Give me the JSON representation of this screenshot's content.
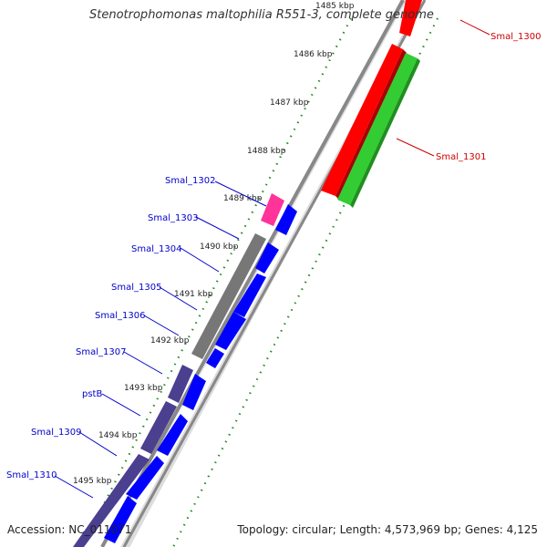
{
  "title": "Stenotrophomonas maltophilia R551-3, complete genome",
  "footer": {
    "accession": "Accession: NC_011071",
    "topology": "Topology: circular; Length: 4,573,969 bp; Genes: 4,125"
  },
  "colors": {
    "forward_gene": "#0000ff",
    "reverse_gene_red": "#ff0000",
    "reverse_gene_green": "#33cc33",
    "pseudo_grey": "#777777",
    "slate_gene": "#4b3f8f",
    "magenta_gene": "#ff3399",
    "label_blue": "#0000cc",
    "label_red": "#cc0000",
    "tick_green": "#228b22"
  },
  "scale_ticks": [
    "1485 kbp",
    "1486 kbp",
    "1487 kbp",
    "1488 kbp",
    "1489 kbp",
    "1490 kbp",
    "1491 kbp",
    "1492 kbp",
    "1493 kbp",
    "1494 kbp",
    "1495 kbp"
  ],
  "gene_labels": [
    {
      "text": "Smal_1300",
      "color": "red"
    },
    {
      "text": "Smal_1301",
      "color": "red"
    },
    {
      "text": "Smal_1302",
      "color": "blue"
    },
    {
      "text": "Smal_1303",
      "color": "blue"
    },
    {
      "text": "Smal_1304",
      "color": "blue"
    },
    {
      "text": "Smal_1305",
      "color": "blue"
    },
    {
      "text": "Smal_1306",
      "color": "blue"
    },
    {
      "text": "Smal_1307",
      "color": "blue"
    },
    {
      "text": "pstB",
      "color": "blue"
    },
    {
      "text": "Smal_1309",
      "color": "blue"
    },
    {
      "text": "Smal_1310",
      "color": "blue"
    }
  ]
}
